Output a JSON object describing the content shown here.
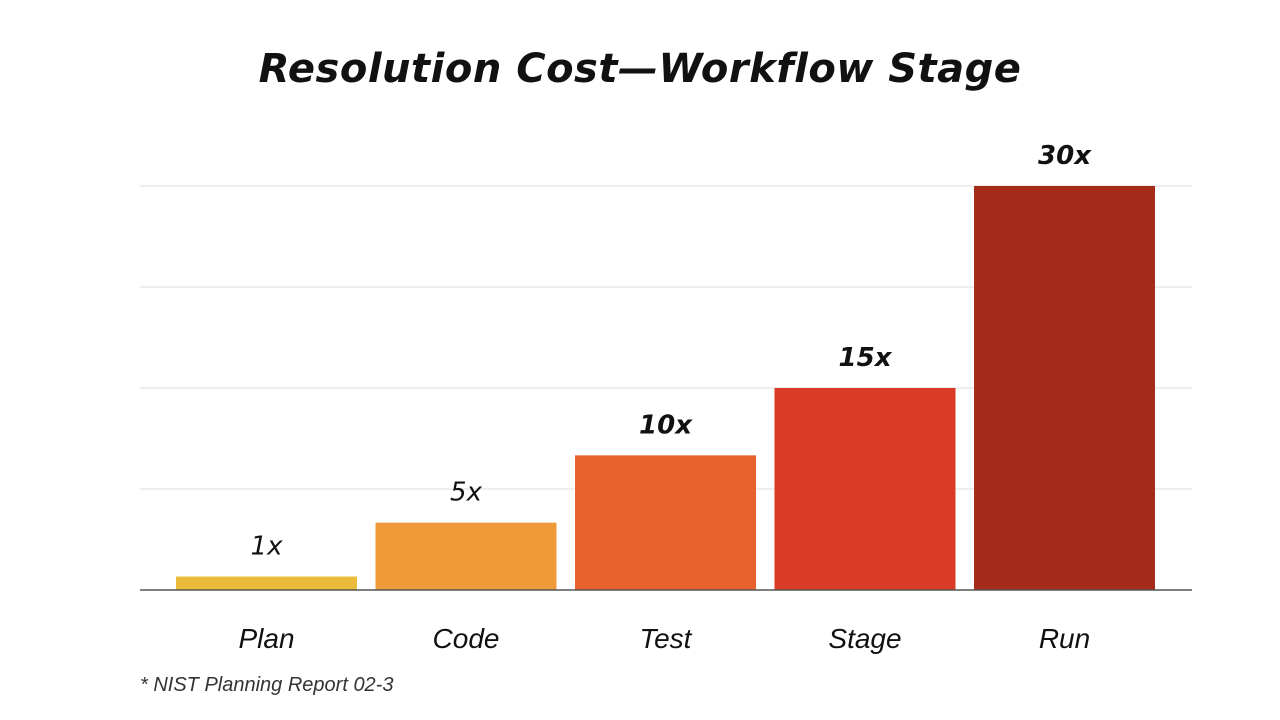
{
  "title": "Resolution Cost—Workflow Stage",
  "footnote": "* NIST Planning Report 02-3",
  "colors": {
    "Plan": "#ebbb3a",
    "Code": "#ee9a39",
    "Test": "#e8622d",
    "Stage": "#d93b26",
    "Run": "#a52b1a",
    "gridline": "#dddddd",
    "baseline": "#555555"
  },
  "chart_data": {
    "type": "bar",
    "title": "Resolution Cost—Workflow Stage",
    "categories": [
      "Plan",
      "Code",
      "Test",
      "Stage",
      "Run"
    ],
    "values": [
      1,
      5,
      10,
      15,
      30
    ],
    "data_labels": [
      "1x",
      "5x",
      "10x",
      "15x",
      "30x"
    ],
    "xlabel": "",
    "ylabel": "",
    "ylim": [
      0,
      30
    ],
    "grid": true,
    "legend": "none"
  }
}
